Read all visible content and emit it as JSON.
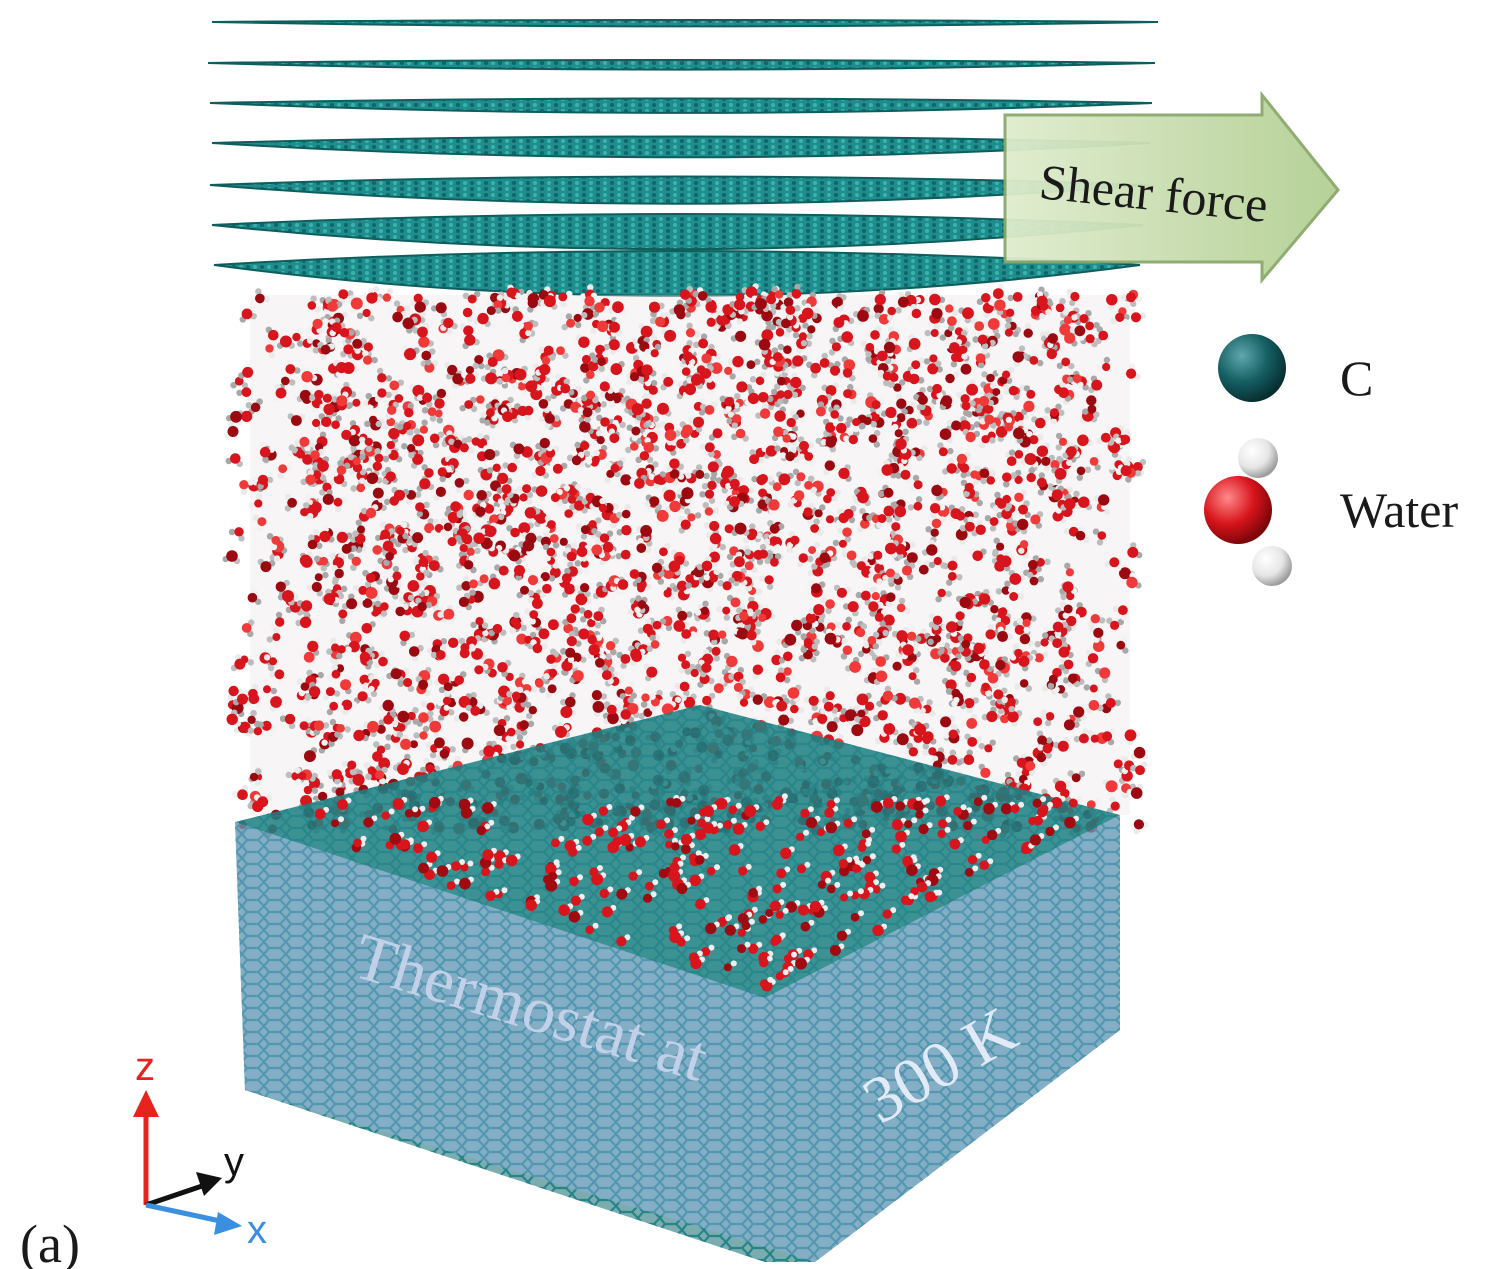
{
  "figure": {
    "panel_label": "(a)",
    "shear_label": "Shear force",
    "thermostat_part1": "Thermostat at",
    "thermostat_part2": "300 K"
  },
  "legend": {
    "carbon_label": "C",
    "water_label": "Water"
  },
  "axes": {
    "z_label": "z",
    "y_label": "y",
    "x_label": "x"
  },
  "colors": {
    "graphene": "#1e8a8a",
    "graphene_dark": "#0f5e5e",
    "oxygen": "#d8141c",
    "hydrogen": "#e8e8e8",
    "thermostat": "#7f9fd0",
    "arrow_fill": "#c2d8a6",
    "carbon_legend": "#155f63",
    "axis_z": "#e8231d",
    "axis_y": "#111111",
    "axis_x": "#3a8fe0"
  }
}
